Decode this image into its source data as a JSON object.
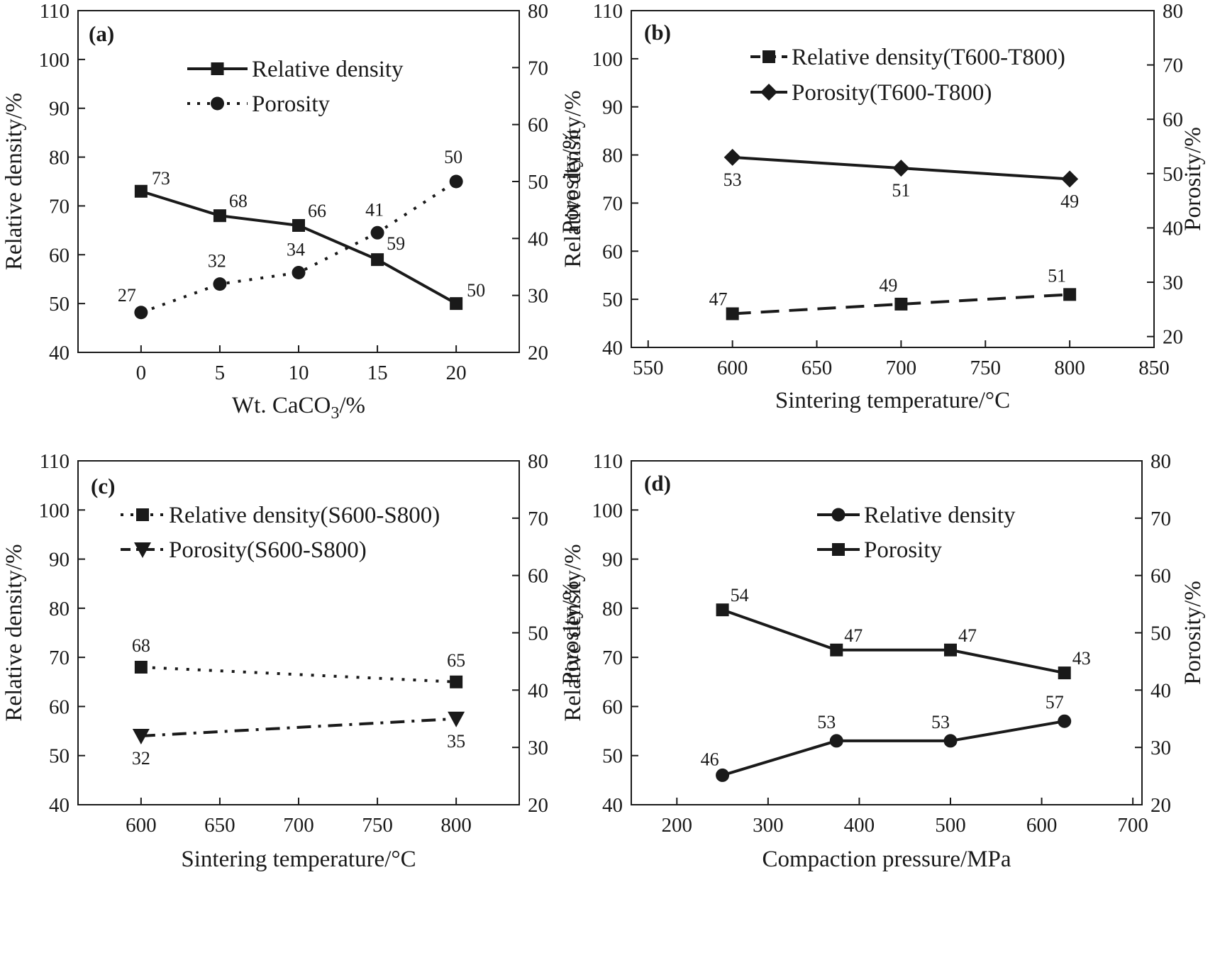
{
  "chart_data": [
    {
      "id": "a",
      "type": "line",
      "panel_label": "(a)",
      "xlabel": "Wt. CaCO",
      "xlabel_sub": "3",
      "xlabel_tail": "/%",
      "ylabel": "Relative density/%",
      "y2label": "Porosity/%",
      "xlim": [
        -4,
        24
      ],
      "ylim": [
        40,
        110
      ],
      "y2lim": [
        20,
        80
      ],
      "xticks": [
        0,
        5,
        10,
        15,
        20
      ],
      "yticks": [
        40,
        50,
        60,
        70,
        80,
        90,
        100,
        110
      ],
      "y2ticks": [
        20,
        30,
        40,
        50,
        60,
        70,
        80
      ],
      "legend": "top-center",
      "series": [
        {
          "name": "Relative density",
          "axis": "left",
          "marker": "square",
          "dash": "solid",
          "x": [
            0,
            5,
            10,
            15,
            20
          ],
          "values": [
            73,
            68,
            66,
            59,
            50
          ],
          "labels": [
            "73",
            "68",
            "66",
            "59",
            "50"
          ]
        },
        {
          "name": "Porosity",
          "axis": "right",
          "marker": "circle",
          "dash": "dot",
          "x": [
            0,
            5,
            10,
            15,
            20
          ],
          "values": [
            27,
            32,
            34,
            41,
            50
          ],
          "labels": [
            "27",
            "32",
            "34",
            "41",
            "50"
          ]
        }
      ]
    },
    {
      "id": "b",
      "type": "line",
      "panel_label": "(b)",
      "xlabel": "Sintering temperature/°C",
      "ylabel": "Relative density/%",
      "y2label": "Porosity/%",
      "xlim": [
        540,
        850
      ],
      "ylim": [
        40,
        110
      ],
      "y2lim": [
        18,
        80
      ],
      "xticks": [
        550,
        600,
        650,
        700,
        750,
        800,
        850
      ],
      "yticks": [
        40,
        50,
        60,
        70,
        80,
        90,
        100,
        110
      ],
      "y2ticks": [
        20,
        30,
        40,
        50,
        60,
        70,
        80
      ],
      "legend": "top-center",
      "series": [
        {
          "name": "Relative density(T600-T800)",
          "axis": "left",
          "marker": "square",
          "dash": "dash",
          "x": [
            600,
            700,
            800
          ],
          "values": [
            47,
            49,
            51
          ],
          "labels": [
            "47",
            "49",
            "51"
          ]
        },
        {
          "name": "Porosity(T600-T800)",
          "axis": "right",
          "marker": "diamond",
          "dash": "solid",
          "x": [
            600,
            700,
            800
          ],
          "values": [
            53,
            51,
            49
          ],
          "labels": [
            "53",
            "51",
            "49"
          ]
        }
      ]
    },
    {
      "id": "c",
      "type": "line",
      "panel_label": "(c)",
      "xlabel": "Sintering temperature/°C",
      "ylabel": "Relative density/%",
      "y2label": "Porosity/%",
      "xlim": [
        560,
        840
      ],
      "ylim": [
        40,
        110
      ],
      "y2lim": [
        20,
        80
      ],
      "xticks": [
        600,
        650,
        700,
        750,
        800
      ],
      "yticks": [
        40,
        50,
        60,
        70,
        80,
        90,
        100,
        110
      ],
      "y2ticks": [
        20,
        30,
        40,
        50,
        60,
        70,
        80
      ],
      "legend": "top-center",
      "series": [
        {
          "name": "Relative density(S600-S800)",
          "axis": "left",
          "marker": "square",
          "dash": "dot",
          "x": [
            600,
            800
          ],
          "values": [
            68,
            65
          ],
          "labels": [
            "68",
            "65"
          ]
        },
        {
          "name": "Porosity(S600-S800)",
          "axis": "right",
          "marker": "triangle-down",
          "dash": "dashdot",
          "x": [
            600,
            800
          ],
          "values": [
            32,
            35
          ],
          "labels": [
            "32",
            "35"
          ]
        }
      ]
    },
    {
      "id": "d",
      "type": "line",
      "panel_label": "(d)",
      "xlabel": "Compaction pressure/MPa",
      "ylabel": "Relative density/%",
      "y2label": "Porosity/%",
      "xlim": [
        150,
        710
      ],
      "ylim": [
        40,
        110
      ],
      "y2lim": [
        20,
        80
      ],
      "xticks": [
        200,
        300,
        400,
        500,
        600,
        700
      ],
      "yticks": [
        40,
        50,
        60,
        70,
        80,
        90,
        100,
        110
      ],
      "y2ticks": [
        20,
        30,
        40,
        50,
        60,
        70,
        80
      ],
      "legend": "top-center",
      "series": [
        {
          "name": "Relative density",
          "axis": "left",
          "marker": "circle",
          "dash": "solid",
          "x": [
            250,
            375,
            500,
            625
          ],
          "values": [
            46,
            53,
            53,
            57
          ],
          "labels": [
            "46",
            "53",
            "53",
            "57"
          ]
        },
        {
          "name": "Porosity",
          "axis": "right",
          "marker": "square",
          "dash": "solid",
          "x": [
            250,
            375,
            500,
            625
          ],
          "values": [
            54,
            47,
            47,
            43
          ],
          "labels": [
            "54",
            "47",
            "47",
            "43"
          ]
        }
      ]
    }
  ]
}
